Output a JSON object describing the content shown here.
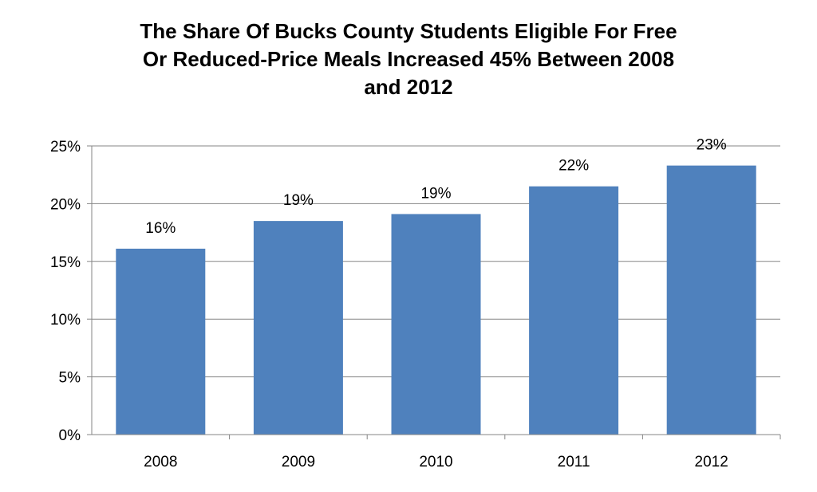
{
  "chart_data": {
    "type": "bar",
    "title_lines": [
      "The Share Of Bucks County Students Eligible For Free",
      "Or Reduced-Price Meals Increased 45% Between 2008",
      "and 2012"
    ],
    "categories": [
      "2008",
      "2009",
      "2010",
      "2011",
      "2012"
    ],
    "values": [
      16.1,
      18.5,
      19.1,
      21.5,
      23.3
    ],
    "data_labels": [
      "16%",
      "19%",
      "19%",
      "22%",
      "23%"
    ],
    "ylim": [
      0,
      25
    ],
    "yticks": [
      0,
      5,
      10,
      15,
      20,
      25
    ],
    "ytick_labels": [
      "0%",
      "5%",
      "10%",
      "15%",
      "20%",
      "25%"
    ],
    "xlabel": "",
    "ylabel": "",
    "grid": true,
    "legend": "none",
    "colors": {
      "bar": "#4f81bd",
      "grid": "#868686"
    }
  }
}
